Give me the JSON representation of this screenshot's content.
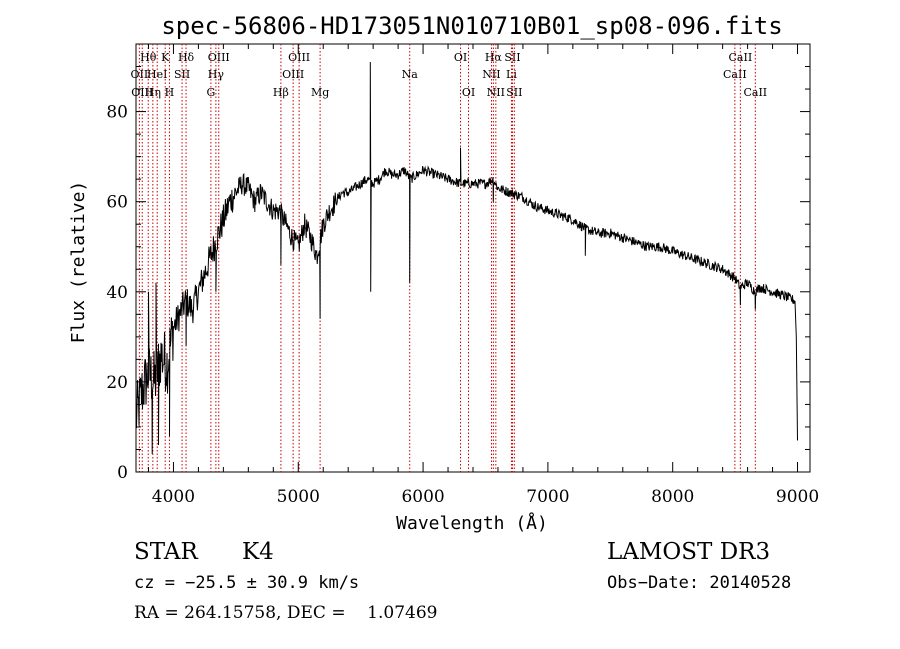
{
  "chart_data": {
    "type": "line",
    "title": "spec-56806-HD173051N010710B01_sp08-096.fits",
    "xlabel": "Wavelength (Å)",
    "ylabel": "Flux (relative)",
    "xlim": [
      3700,
      9100
    ],
    "ylim": [
      0,
      95
    ],
    "x_ticks": [
      4000,
      5000,
      6000,
      7000,
      8000,
      9000
    ],
    "y_ticks": [
      0,
      20,
      40,
      60,
      80
    ],
    "series": [
      {
        "name": "flux",
        "color": "#000000",
        "x": [
          3700,
          3750,
          3800,
          3850,
          3900,
          3950,
          4000,
          4050,
          4100,
          4150,
          4200,
          4250,
          4300,
          4350,
          4400,
          4450,
          4500,
          4550,
          4600,
          4650,
          4700,
          4750,
          4800,
          4850,
          4900,
          4950,
          5000,
          5050,
          5100,
          5150,
          5200,
          5250,
          5300,
          5350,
          5400,
          5450,
          5500,
          5550,
          5600,
          5650,
          5700,
          5750,
          5800,
          5850,
          5900,
          5950,
          6000,
          6100,
          6200,
          6300,
          6400,
          6500,
          6560,
          6600,
          6700,
          6800,
          6900,
          7000,
          7100,
          7200,
          7300,
          7400,
          7500,
          7600,
          7700,
          7800,
          7900,
          8000,
          8100,
          8200,
          8300,
          8400,
          8500,
          8540,
          8600,
          8660,
          8700,
          8800,
          8900,
          8980
        ],
        "y": [
          12,
          18,
          22,
          20,
          26,
          24,
          32,
          35,
          38,
          36,
          40,
          44,
          48,
          52,
          56,
          60,
          62,
          64,
          63,
          60,
          62,
          60,
          58,
          58,
          55,
          52,
          50,
          55,
          52,
          48,
          55,
          58,
          60,
          62,
          62,
          63,
          64,
          65,
          64,
          65,
          67,
          66,
          66,
          67,
          65,
          66,
          67,
          66,
          65,
          64,
          64,
          64,
          65,
          63,
          62,
          61,
          59,
          58,
          57,
          56,
          54,
          53,
          53,
          52,
          51,
          50,
          50,
          49,
          48,
          47,
          46,
          45,
          43,
          41,
          42,
          40,
          41,
          40,
          39,
          38
        ]
      }
    ],
    "spikes": [
      {
        "x": 3800,
        "y": 40
      },
      {
        "x": 3830,
        "y": 4
      },
      {
        "x": 3860,
        "y": 42
      },
      {
        "x": 3880,
        "y": 6
      },
      {
        "x": 3930,
        "y": 30
      },
      {
        "x": 3968,
        "y": 8
      },
      {
        "x": 4101,
        "y": 28
      },
      {
        "x": 4340,
        "y": 40
      },
      {
        "x": 4861,
        "y": 46
      },
      {
        "x": 5175,
        "y": 34
      },
      {
        "x": 5577,
        "y": 91
      },
      {
        "x": 5580,
        "y": 40
      },
      {
        "x": 5893,
        "y": 42
      },
      {
        "x": 6300,
        "y": 72
      },
      {
        "x": 6563,
        "y": 60
      },
      {
        "x": 7300,
        "y": 48
      },
      {
        "x": 8542,
        "y": 37
      },
      {
        "x": 8662,
        "y": 36
      },
      {
        "x": 8990,
        "y": 30
      },
      {
        "x": 9000,
        "y": 7
      }
    ],
    "lines": [
      {
        "x": 3727,
        "label": "OII",
        "row": 1
      },
      {
        "x": 3750,
        "label": "OIII",
        "row": 2
      },
      {
        "x": 3798,
        "label": "Hθ",
        "row": 0
      },
      {
        "x": 3835,
        "label": "Hη",
        "row": 2
      },
      {
        "x": 3870,
        "label": "HeI",
        "row": 1
      },
      {
        "x": 3934,
        "label": "K",
        "row": 0
      },
      {
        "x": 3968,
        "label": "H",
        "row": 2
      },
      {
        "x": 4069,
        "label": "SII",
        "row": 1
      },
      {
        "x": 4101,
        "label": "Hδ",
        "row": 0
      },
      {
        "x": 4300,
        "label": "G",
        "row": 2
      },
      {
        "x": 4340,
        "label": "Hγ",
        "row": 1
      },
      {
        "x": 4363,
        "label": "OIII",
        "row": 0
      },
      {
        "x": 4861,
        "label": "Hβ",
        "row": 2
      },
      {
        "x": 4959,
        "label": "OIII",
        "row": 1
      },
      {
        "x": 5007,
        "label": "OIII",
        "row": 0
      },
      {
        "x": 5175,
        "label": "Mg",
        "row": 2
      },
      {
        "x": 5893,
        "label": "Na",
        "row": 1
      },
      {
        "x": 6300,
        "label": "OI",
        "row": 0
      },
      {
        "x": 6364,
        "label": "OI",
        "row": 2
      },
      {
        "x": 6548,
        "label": "NII",
        "row": 1
      },
      {
        "x": 6563,
        "label": "Hα",
        "row": 0
      },
      {
        "x": 6583,
        "label": "NII",
        "row": 2
      },
      {
        "x": 6708,
        "label": "Li",
        "row": 1
      },
      {
        "x": 6716,
        "label": "SII",
        "row": 0
      },
      {
        "x": 6731,
        "label": "SII",
        "row": 2
      },
      {
        "x": 8498,
        "label": "CaII",
        "row": 1
      },
      {
        "x": 8542,
        "label": "CaII",
        "row": 0
      },
      {
        "x": 8662,
        "label": "CaII",
        "row": 2
      }
    ],
    "line_color": "#cc0000"
  },
  "info": {
    "object_class": "STAR",
    "subclass": "K4",
    "survey": "LAMOST DR3",
    "cz": "cz = −25.5 ± 30.9 km/s",
    "obs_date": "Obs−Date: 20140528",
    "coords": "RA = 264.15758, DEC =    1.07469"
  }
}
